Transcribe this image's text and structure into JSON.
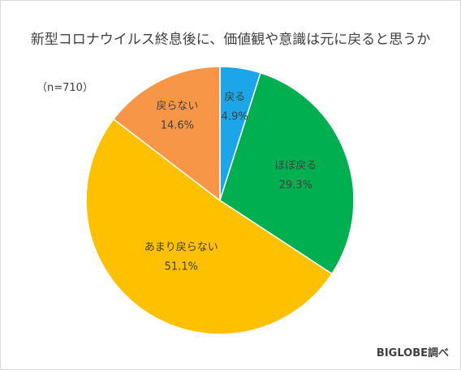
{
  "page": {
    "title": "新型コロナウイルス終息後に、価値観や意識は元に戻ると思うか",
    "sample_size": "（n=710）",
    "source": "BIGLOBE調べ"
  },
  "chart_data": {
    "type": "pie",
    "title": "新型コロナウイルス終息後に、価値観や意識は元に戻ると思うか",
    "categories": [
      "戻る",
      "ほぼ戻る",
      "あまり戻らない",
      "戻らない"
    ],
    "values": [
      4.9,
      29.3,
      51.1,
      14.6
    ],
    "value_labels": [
      "4.9%",
      "29.3%",
      "51.1%",
      "14.6%"
    ],
    "colors": [
      "#1aa6e8",
      "#00b050",
      "#ffc000",
      "#f79646"
    ],
    "start": "12 o'clock, clockwise",
    "legend": "none (labels inside slices)"
  }
}
